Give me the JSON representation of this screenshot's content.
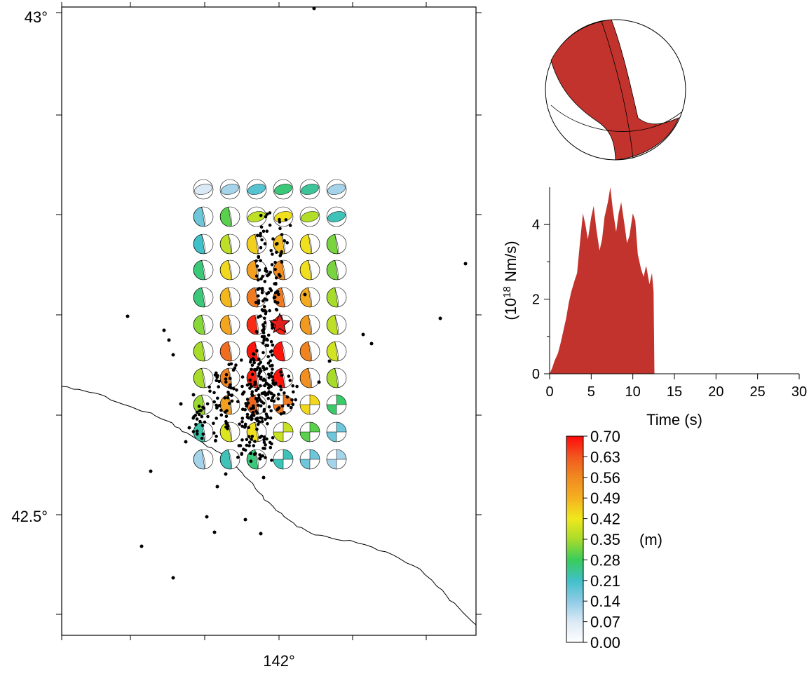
{
  "map": {
    "lat_labels": [
      "43°",
      "42.5°"
    ],
    "lon_labels": [
      "142°"
    ]
  },
  "mechanism": {
    "fill_color": "#c1332c",
    "background": "#ffffff"
  },
  "colors": {
    "rupture_fill": "#c1332c",
    "epicenter_star": "#e21b1b",
    "aftershock": "#000000",
    "coastline": "#000000"
  },
  "chart_data": [
    {
      "type": "area",
      "name": "moment-rate-function",
      "xlabel": "Time (s)",
      "ylabel_prefix": "(10",
      "ylabel_sup": "18",
      "ylabel_suffix": " Nm/s)",
      "xlim": [
        0,
        30
      ],
      "ylim": [
        0,
        5
      ],
      "xticks": [
        0,
        5,
        10,
        15,
        20,
        25,
        30
      ],
      "yticks": [
        0,
        2,
        4
      ],
      "x": [
        0,
        0.3,
        0.6,
        1.0,
        1.3,
        1.6,
        2.0,
        2.3,
        2.6,
        3.0,
        3.3,
        3.6,
        4.0,
        4.3,
        4.6,
        5.0,
        5.3,
        5.6,
        6.0,
        6.3,
        6.6,
        7.0,
        7.3,
        7.6,
        8.0,
        8.3,
        8.6,
        9.0,
        9.3,
        9.6,
        10.0,
        10.3,
        10.6,
        11.0,
        11.3,
        11.6,
        12.0,
        12.3,
        12.5,
        12.6
      ],
      "y": [
        0,
        0.15,
        0.35,
        0.55,
        0.8,
        1.1,
        1.5,
        1.9,
        2.2,
        2.5,
        2.7,
        3.4,
        4.3,
        4.0,
        3.6,
        4.2,
        4.5,
        3.9,
        3.3,
        3.6,
        4.2,
        4.6,
        5.0,
        4.4,
        3.8,
        4.3,
        4.6,
        4.0,
        3.5,
        3.7,
        4.3,
        4.1,
        3.2,
        2.8,
        2.6,
        2.9,
        2.4,
        2.7,
        2.2,
        0
      ],
      "color": "#c1332c"
    },
    {
      "type": "heatmap",
      "name": "slip-distribution",
      "unit_label": "(m)",
      "colorbar_ticks": [
        "0.70",
        "0.63",
        "0.56",
        "0.49",
        "0.42",
        "0.35",
        "0.28",
        "0.21",
        "0.14",
        "0.07",
        "0.00"
      ],
      "colormap_stops": [
        {
          "value": 0.0,
          "color": "#ffffff"
        },
        {
          "value": 0.1,
          "color": "#dbe9f5"
        },
        {
          "value": 0.2,
          "color": "#8fcbe6"
        },
        {
          "value": 0.3,
          "color": "#40c0c8"
        },
        {
          "value": 0.4,
          "color": "#39cc5a"
        },
        {
          "value": 0.5,
          "color": "#a8dc2b"
        },
        {
          "value": 0.6,
          "color": "#f0e81c"
        },
        {
          "value": 0.7,
          "color": "#f5b020"
        },
        {
          "value": 0.8,
          "color": "#f08a20"
        },
        {
          "value": 0.9,
          "color": "#f2571f"
        },
        {
          "value": 1.0,
          "color": "#ff0a0a"
        }
      ],
      "grid_rows": 11,
      "grid_cols": 6,
      "slip": [
        [
          0.07,
          0.12,
          0.19,
          0.26,
          0.24,
          0.12
        ],
        [
          0.17,
          0.3,
          0.37,
          0.43,
          0.36,
          0.22
        ],
        [
          0.21,
          0.37,
          0.45,
          0.47,
          0.43,
          0.32
        ],
        [
          0.26,
          0.44,
          0.52,
          0.55,
          0.43,
          0.32
        ],
        [
          0.26,
          0.48,
          0.58,
          0.58,
          0.5,
          0.35
        ],
        [
          0.33,
          0.51,
          0.67,
          0.68,
          0.53,
          0.37
        ],
        [
          0.35,
          0.6,
          0.69,
          0.69,
          0.57,
          0.39
        ],
        [
          0.35,
          0.57,
          0.68,
          0.69,
          0.55,
          0.35
        ],
        [
          0.34,
          0.52,
          0.61,
          0.58,
          0.44,
          0.27
        ],
        [
          0.23,
          0.4,
          0.43,
          0.38,
          0.3,
          0.17
        ],
        [
          0.12,
          0.22,
          0.26,
          0.22,
          0.17,
          0.12
        ]
      ]
    }
  ]
}
